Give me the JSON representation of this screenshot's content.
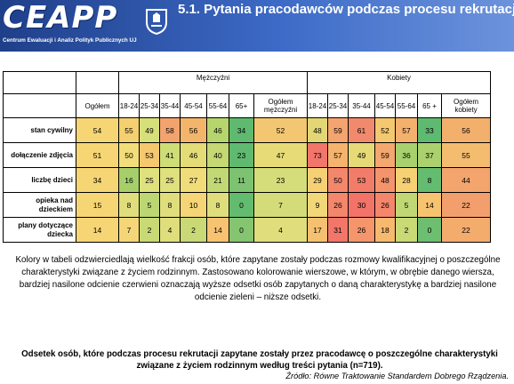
{
  "header": {
    "logo_text": "CEAPP",
    "logo_subtitle": "Centrum Ewaluacji i Analiz Polityk Publicznych UJ",
    "title": "5.1. Pytania pracodawców podczas procesu rekrutacji",
    "background": "#2f56b0"
  },
  "table": {
    "group_men": "Mężczyźni",
    "group_women": "Kobiety",
    "col_total": "Ogółem",
    "men_cols": [
      "18-24",
      "25-34",
      "35-44",
      "45-54",
      "55-64",
      "65+"
    ],
    "men_total": "Ogółem mężczyźni",
    "women_cols": [
      "18-24",
      "25-34",
      "35-44",
      "45-54",
      "55-64",
      "65 +"
    ],
    "women_total": "Ogółem kobiety",
    "rows": [
      {
        "label": "stan cywilny",
        "values": [
          "54",
          "55",
          "49",
          "58",
          "56",
          "46",
          "34",
          "52",
          "48",
          "59",
          "61",
          "52",
          "57",
          "33",
          "56"
        ],
        "colors": [
          "#f6d574",
          "#f5d070",
          "#d7df7a",
          "#f2a36e",
          "#f3b56c",
          "#b6d56c",
          "#5fba70",
          "#f3c771",
          "#e2d774",
          "#f4a46e",
          "#f18a6c",
          "#f4c86f",
          "#f4b06d",
          "#5eba70",
          "#f3b06d"
        ]
      },
      {
        "label": "dołączenie zdjęcia",
        "values": [
          "51",
          "50",
          "53",
          "41",
          "46",
          "40",
          "23",
          "47",
          "73",
          "57",
          "49",
          "59",
          "36",
          "37",
          "55"
        ],
        "colors": [
          "#f6d574",
          "#f2dd7a",
          "#f5c86f",
          "#cfdd77",
          "#e3dc77",
          "#c4d873",
          "#5fba70",
          "#e6db76",
          "#f2766a",
          "#f4b46d",
          "#e6da76",
          "#f4a76e",
          "#a8d16e",
          "#abd16e",
          "#f4bc6e"
        ]
      },
      {
        "label": "liczbę dzieci",
        "values": [
          "34",
          "16",
          "25",
          "25",
          "27",
          "21",
          "11",
          "23",
          "29",
          "50",
          "53",
          "48",
          "28",
          "8",
          "44"
        ],
        "colors": [
          "#f6d574",
          "#a6cf6c",
          "#dfe07e",
          "#dfe07e",
          "#f1dc7a",
          "#c2d875",
          "#7cc270",
          "#d4dd7a",
          "#f6d174",
          "#f3866b",
          "#f27c6a",
          "#f4946c",
          "#f6d174",
          "#64bc70",
          "#f4a56e"
        ]
      },
      {
        "label": "opieka nad dzieckiem",
        "values": [
          "15",
          "8",
          "5",
          "8",
          "10",
          "8",
          "0",
          "7",
          "9",
          "26",
          "30",
          "26",
          "5",
          "14",
          "22"
        ],
        "colors": [
          "#f6d574",
          "#e0de7c",
          "#bcd674",
          "#e0de7c",
          "#f5d576",
          "#e0de7c",
          "#63bb70",
          "#d3dc79",
          "#f2d778",
          "#f3866b",
          "#f37369",
          "#f3866b",
          "#c0d774",
          "#f6c470",
          "#f39f6d"
        ]
      },
      {
        "label": "plany dotyczące dziecka",
        "values": [
          "14",
          "7",
          "2",
          "4",
          "2",
          "14",
          "0",
          "4",
          "17",
          "31",
          "26",
          "18",
          "2",
          "0",
          "22"
        ],
        "colors": [
          "#f6d574",
          "#f4d678",
          "#c8d975",
          "#e0de7c",
          "#c8d975",
          "#f7c371",
          "#85c470",
          "#e0de7c",
          "#f5c06f",
          "#f27669",
          "#f4956c",
          "#f6b96e",
          "#c8d975",
          "#6dbe71",
          "#f4ac6d"
        ]
      }
    ]
  },
  "description": "Kolory w tabeli odzwierciedlają wielkość frakcji osób, które zapytane zostały podczas rozmowy kwalifikacyjnej o poszczególne charakterystyki związane z życiem rodzinnym. Zastosowano kolorowanie wierszowe, w którym, w obrębie danego wiersza, bardziej nasilone odcienie czerwieni oznaczają wyższe odsetki osób zapytanych o daną charakterystykę a bardziej nasilone odcienie zieleni – niższe odsetki.",
  "bottom_title": "Odsetek osób, które podczas procesu rekrutacji zapytane zostały przez pracodawcę o poszczególne charakterystyki związane z życiem rodzinnym według treści pytania (n=719).",
  "source": "Źródło: Równe Traktowanie Standardem Dobrego Rządzenia."
}
